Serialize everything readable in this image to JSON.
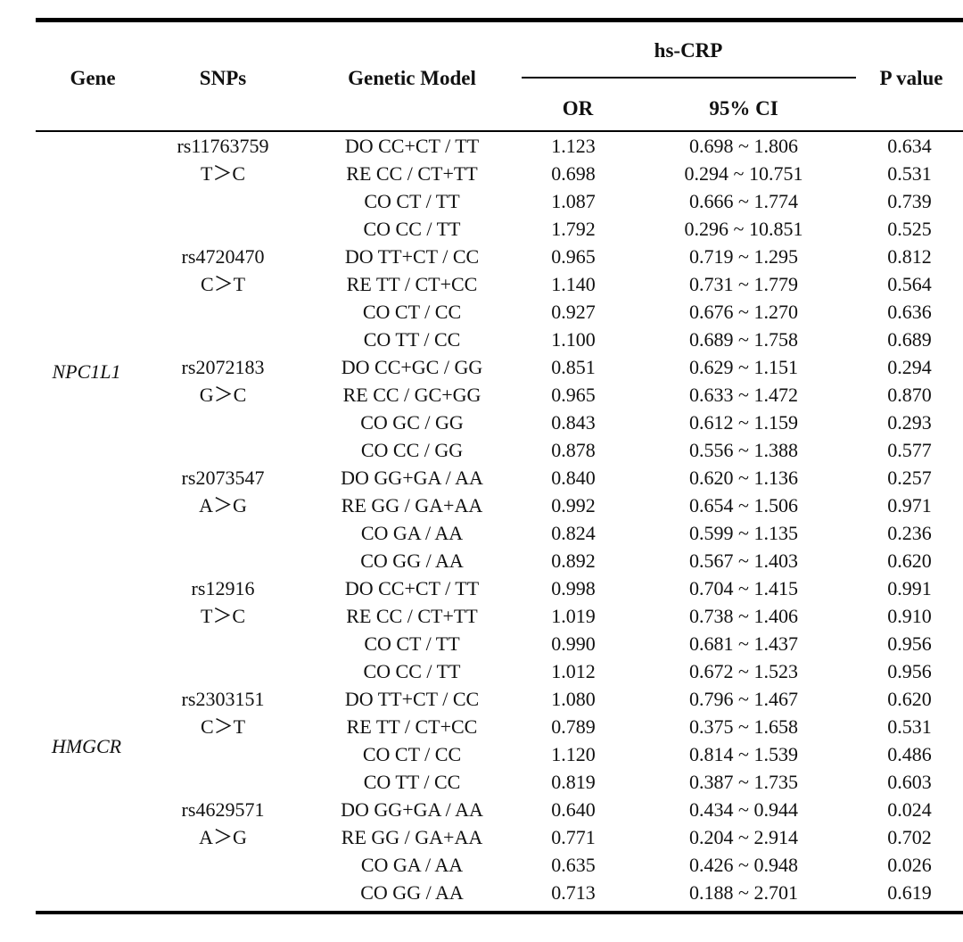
{
  "table": {
    "headers": {
      "gene": "Gene",
      "snps": "SNPs",
      "model": "Genetic Model",
      "group": "hs-CRP",
      "or": "OR",
      "ci": "95% CI",
      "p": "P value"
    },
    "genes": [
      {
        "name": "NPC1L1"
      },
      {
        "name": "HMGCR"
      }
    ],
    "snps": [
      {
        "id": "rs11763759",
        "allele": "T＞C"
      },
      {
        "id": "rs4720470",
        "allele": "C＞T"
      },
      {
        "id": "rs2072183",
        "allele": "G＞C"
      },
      {
        "id": "rs2073547",
        "allele": "A＞G"
      },
      {
        "id": "rs12916",
        "allele": "T＞C"
      },
      {
        "id": "rs2303151",
        "allele": "C＞T"
      },
      {
        "id": "rs4629571",
        "allele": "A＞G"
      }
    ],
    "rows": [
      {
        "model": "DO CC+CT / TT",
        "or": "1.123",
        "ci": "0.698 ~ 1.806",
        "p": "0.634"
      },
      {
        "model": "RE CC / CT+TT",
        "or": "0.698",
        "ci": "0.294 ~ 10.751",
        "p": "0.531"
      },
      {
        "model": "CO CT / TT",
        "or": "1.087",
        "ci": "0.666 ~ 1.774",
        "p": "0.739"
      },
      {
        "model": "CO CC / TT",
        "or": "1.792",
        "ci": "0.296 ~ 10.851",
        "p": "0.525"
      },
      {
        "model": "DO TT+CT / CC",
        "or": "0.965",
        "ci": "0.719 ~ 1.295",
        "p": "0.812"
      },
      {
        "model": "RE TT / CT+CC",
        "or": "1.140",
        "ci": "0.731 ~ 1.779",
        "p": "0.564"
      },
      {
        "model": "CO CT / CC",
        "or": "0.927",
        "ci": "0.676 ~ 1.270",
        "p": "0.636"
      },
      {
        "model": "CO TT / CC",
        "or": "1.100",
        "ci": "0.689 ~ 1.758",
        "p": "0.689"
      },
      {
        "model": "DO CC+GC / GG",
        "or": "0.851",
        "ci": "0.629 ~ 1.151",
        "p": "0.294"
      },
      {
        "model": "RE CC / GC+GG",
        "or": "0.965",
        "ci": "0.633 ~ 1.472",
        "p": "0.870"
      },
      {
        "model": "CO GC / GG",
        "or": "0.843",
        "ci": "0.612 ~ 1.159",
        "p": "0.293"
      },
      {
        "model": "CO CC / GG",
        "or": "0.878",
        "ci": "0.556 ~ 1.388",
        "p": "0.577"
      },
      {
        "model": "DO GG+GA / AA",
        "or": "0.840",
        "ci": "0.620 ~ 1.136",
        "p": "0.257"
      },
      {
        "model": "RE GG / GA+AA",
        "or": "0.992",
        "ci": "0.654 ~ 1.506",
        "p": "0.971"
      },
      {
        "model": "CO GA / AA",
        "or": "0.824",
        "ci": "0.599 ~ 1.135",
        "p": "0.236"
      },
      {
        "model": "CO GG / AA",
        "or": "0.892",
        "ci": "0.567 ~ 1.403",
        "p": "0.620"
      },
      {
        "model": "DO CC+CT / TT",
        "or": "0.998",
        "ci": "0.704 ~ 1.415",
        "p": "0.991"
      },
      {
        "model": "RE CC / CT+TT",
        "or": "1.019",
        "ci": "0.738 ~ 1.406",
        "p": "0.910"
      },
      {
        "model": "CO CT / TT",
        "or": "0.990",
        "ci": "0.681 ~ 1.437",
        "p": "0.956"
      },
      {
        "model": "CO CC / TT",
        "or": "1.012",
        "ci": "0.672 ~ 1.523",
        "p": "0.956"
      },
      {
        "model": "DO TT+CT / CC",
        "or": "1.080",
        "ci": "0.796 ~ 1.467",
        "p": "0.620"
      },
      {
        "model": "RE TT / CT+CC",
        "or": "0.789",
        "ci": "0.375 ~ 1.658",
        "p": "0.531"
      },
      {
        "model": "CO CT / CC",
        "or": "1.120",
        "ci": "0.814 ~ 1.539",
        "p": "0.486"
      },
      {
        "model": "CO TT / CC",
        "or": "0.819",
        "ci": "0.387 ~ 1.735",
        "p": "0.603"
      },
      {
        "model": "DO GG+GA / AA",
        "or": "0.640",
        "ci": "0.434 ~ 0.944",
        "p": "0.024"
      },
      {
        "model": "RE GG / GA+AA",
        "or": "0.771",
        "ci": "0.204 ~ 2.914",
        "p": "0.702"
      },
      {
        "model": "CO GA / AA",
        "or": "0.635",
        "ci": "0.426 ~ 0.948",
        "p": "0.026"
      },
      {
        "model": "CO GG / AA",
        "or": "0.713",
        "ci": "0.188 ~ 2.701",
        "p": "0.619"
      }
    ]
  }
}
